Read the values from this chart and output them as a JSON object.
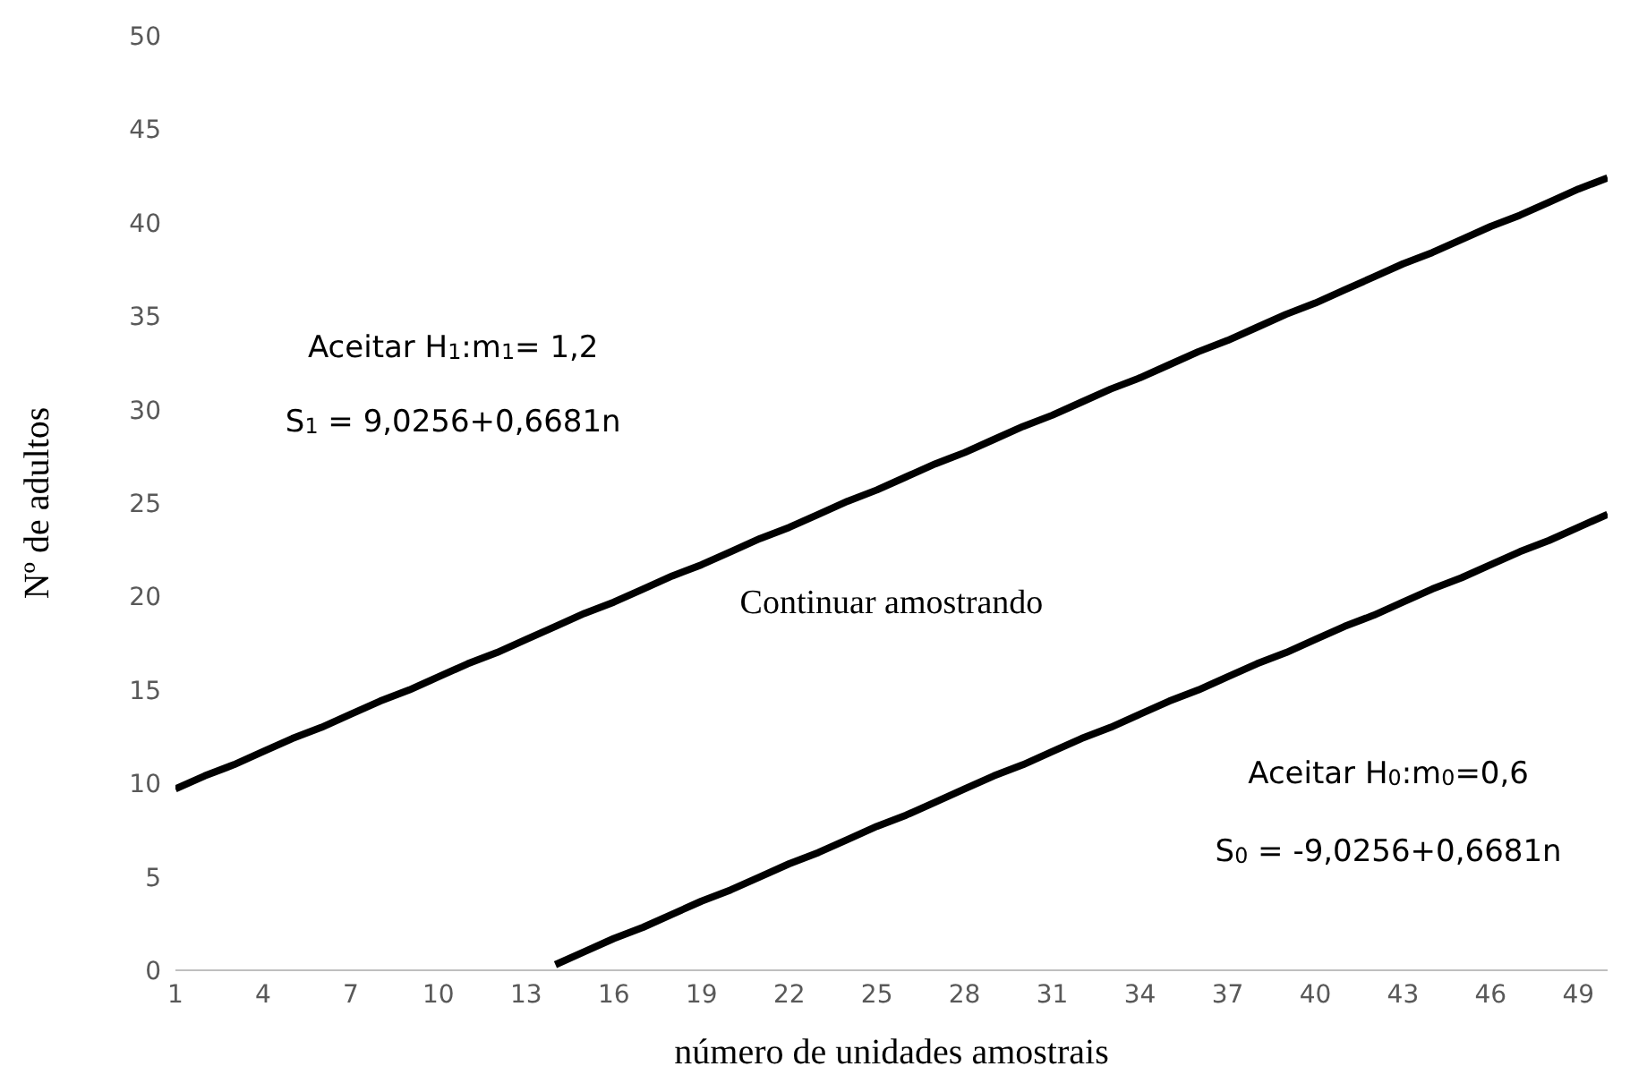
{
  "chart_data": {
    "type": "line",
    "xlabel": "número de unidades amostrais",
    "ylabel": "Nº de adultos",
    "x": [
      1,
      2,
      3,
      4,
      5,
      6,
      7,
      8,
      9,
      10,
      11,
      12,
      13,
      14,
      15,
      16,
      17,
      18,
      19,
      20,
      21,
      22,
      23,
      24,
      25,
      26,
      27,
      28,
      29,
      30,
      31,
      32,
      33,
      34,
      35,
      36,
      37,
      38,
      39,
      40,
      41,
      42,
      43,
      44,
      45,
      46,
      47,
      48,
      49,
      50
    ],
    "series": [
      {
        "color": "#000000",
        "values": [
          9.7,
          10.4,
          11.0,
          11.7,
          12.4,
          13.0,
          13.7,
          14.4,
          15.0,
          15.7,
          16.4,
          17.0,
          17.7,
          18.4,
          19.1,
          19.7,
          20.4,
          21.1,
          21.7,
          22.4,
          23.1,
          23.7,
          24.4,
          25.1,
          25.7,
          26.4,
          27.1,
          27.7,
          28.4,
          29.1,
          29.7,
          30.4,
          31.1,
          31.7,
          32.4,
          33.1,
          33.7,
          34.4,
          35.1,
          35.7,
          36.4,
          37.1,
          37.8,
          38.4,
          39.1,
          39.8,
          40.4,
          41.1,
          41.8,
          42.4
        ]
      },
      {
        "color": "#000000",
        "values": [
          null,
          null,
          null,
          null,
          null,
          null,
          null,
          null,
          null,
          null,
          null,
          null,
          null,
          0.3,
          1.0,
          1.7,
          2.3,
          3.0,
          3.7,
          4.3,
          5.0,
          5.7,
          6.3,
          7.0,
          7.7,
          8.3,
          9.0,
          9.7,
          10.4,
          11.0,
          11.7,
          12.4,
          13.0,
          13.7,
          14.4,
          15.0,
          15.7,
          16.4,
          17.0,
          17.7,
          18.4,
          19.0,
          19.7,
          20.4,
          21.0,
          21.7,
          22.4,
          23.0,
          23.7,
          24.4
        ]
      }
    ],
    "xlim": [
      1,
      50
    ],
    "xticks": [
      1,
      4,
      7,
      10,
      13,
      16,
      19,
      22,
      25,
      28,
      31,
      34,
      37,
      40,
      43,
      46,
      49
    ],
    "ylim": [
      0,
      50
    ],
    "yticks": [
      0,
      5,
      10,
      15,
      20,
      25,
      30,
      35,
      40,
      45,
      50
    ],
    "grid": false,
    "legend": false,
    "marker": "none",
    "line_style": "solid",
    "annotations": [
      "Aceitar H$_{1}$:m$_{1}$= 1,2",
      "S$_{1}$ = 9,0256+0,6681n",
      "Continuar amostrando",
      "Aceitar H$_{0}$:m$_{0}$=0,6",
      "S$_{0}$ = -9,0256+0,6681n"
    ]
  }
}
